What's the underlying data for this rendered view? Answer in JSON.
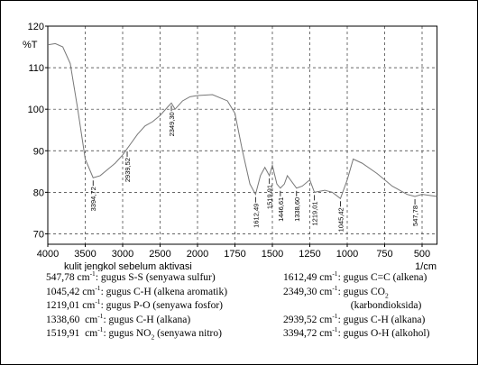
{
  "chart_data": {
    "type": "line",
    "y_label": "%T",
    "x_label": "kulit jengkol sebelum aktivasi",
    "x_unit": "1/cm",
    "xlim": [
      4000,
      400
    ],
    "xticks": [
      4000,
      3500,
      3000,
      2500,
      2000,
      1750,
      1500,
      1250,
      1000,
      750,
      500
    ],
    "ylim": [
      67.5,
      120
    ],
    "yticks": [
      70,
      80,
      90,
      100,
      110,
      120
    ],
    "grid": true,
    "series": [
      {
        "color": "#777777",
        "x": [
          4000,
          3900,
          3800,
          3700,
          3600,
          3500,
          3394.72,
          3300,
          3200,
          3100,
          3000,
          2939.52,
          2900,
          2800,
          2700,
          2600,
          2500,
          2400,
          2349.3,
          2300,
          2200,
          2100,
          2000,
          1900,
          1800,
          1750,
          1700,
          1650,
          1612.49,
          1580,
          1550,
          1519.91,
          1500,
          1470,
          1446.61,
          1420,
          1400,
          1338.6,
          1300,
          1250,
          1219.01,
          1150,
          1100,
          1045.42,
          1000,
          960,
          900,
          800,
          750,
          700,
          600,
          547.78,
          500,
          400
        ],
        "values": [
          115.5,
          115.8,
          115,
          111,
          100,
          88,
          83.5,
          84,
          85.5,
          87,
          89,
          90.5,
          91.5,
          94,
          96,
          97,
          98.5,
          100.5,
          101.5,
          100,
          102,
          103,
          103.3,
          103.5,
          102,
          99,
          90,
          82,
          79.5,
          84,
          86,
          84,
          86.5,
          82,
          81,
          82,
          84,
          81,
          81.5,
          83,
          80,
          80.5,
          80,
          78.5,
          83,
          88,
          87,
          84.5,
          83,
          81.5,
          79.5,
          79,
          79.5,
          79
        ]
      }
    ],
    "peaks": [
      {
        "x": 3394.72,
        "value": 83.5,
        "label": "3394,72"
      },
      {
        "x": 2939.52,
        "value": 90.5,
        "label": "2939,52"
      },
      {
        "x": 2349.3,
        "value": 101.5,
        "label": "2349,30"
      },
      {
        "x": 1612.49,
        "value": 79.5,
        "label": "1612,49"
      },
      {
        "x": 1519.91,
        "value": 84,
        "label": "1519,91"
      },
      {
        "x": 1446.61,
        "value": 81,
        "label": "1446,61"
      },
      {
        "x": 1338.6,
        "value": 81,
        "label": "1338,60"
      },
      {
        "x": 1219.01,
        "value": 80,
        "label": "1219,01"
      },
      {
        "x": 1045.42,
        "value": 78.5,
        "label": "1045,42"
      },
      {
        "x": 547.78,
        "value": 79,
        "label": "547,78"
      }
    ]
  },
  "legend": {
    "left": [
      [
        {
          "t": "547,78 cm"
        },
        {
          "sup": "-1"
        },
        {
          "t": ": gugus S-S (senyawa sulfur)"
        }
      ],
      [
        {
          "t": "1045,42 cm"
        },
        {
          "sup": "-1"
        },
        {
          "t": ": gugus C-H (alkena aromatik)"
        }
      ],
      [
        {
          "t": "1219,01 cm"
        },
        {
          "sup": "-1"
        },
        {
          "t": ": gugus P-O (senyawa fosfor)"
        }
      ],
      [
        {
          "t": "1338,60  cm"
        },
        {
          "sup": "-1"
        },
        {
          "t": ": gugus C-H (alkana)"
        }
      ],
      [
        {
          "t": "1519,91  cm"
        },
        {
          "sup": "-1"
        },
        {
          "t": ": gugus NO"
        },
        {
          "sub": "2"
        },
        {
          "t": " (senyawa nitro)"
        }
      ]
    ],
    "right": [
      [
        {
          "t": "1612,49 cm"
        },
        {
          "sup": "-1"
        },
        {
          "t": ": gugus C=C (alkena)"
        }
      ],
      [
        {
          "t": "2349,30 cm"
        },
        {
          "sup": "-1"
        },
        {
          "t": ": gugus CO"
        },
        {
          "sub": "2"
        }
      ],
      [
        {
          "t": "                          (karbondioksida)"
        }
      ],
      [
        {
          "t": "2939,52 cm"
        },
        {
          "sup": "-1"
        },
        {
          "t": ": gugus C-H (alkana)"
        }
      ],
      [
        {
          "t": "3394,72 cm"
        },
        {
          "sup": "-1"
        },
        {
          "t": ": gugus O-H (alkohol)"
        }
      ]
    ]
  }
}
